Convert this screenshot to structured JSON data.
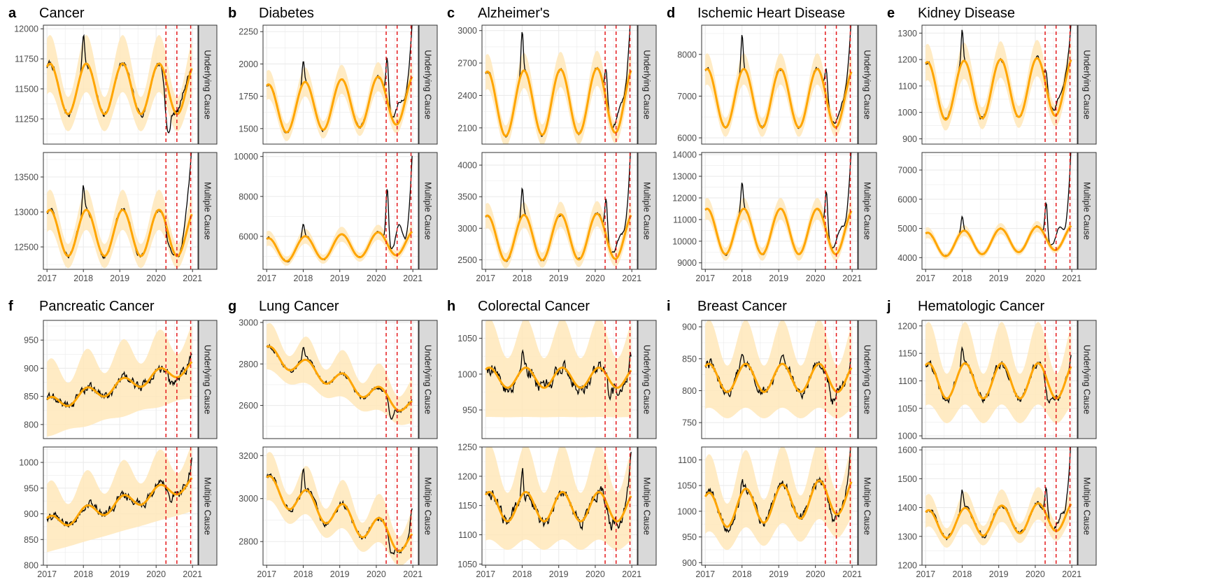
{
  "figure": {
    "strip_labels": [
      "Underlying Cause",
      "Multiple Cause"
    ],
    "x_tick_labels": [
      "2017",
      "2018",
      "2019",
      "2020",
      "2021"
    ],
    "x_ticks": [
      2017,
      2018,
      2019,
      2020,
      2021
    ],
    "xlim": [
      2016.9,
      2021.15
    ],
    "vlines": [
      2020.27,
      2020.57,
      2020.95
    ],
    "colors": {
      "observed": "#000000",
      "expected": "#FFA500",
      "band": "#FFE7BA",
      "vline": "#E41A1C",
      "strip_fill": "#D9D9D9",
      "grid": "#EBEBEB",
      "border": "#333333"
    }
  },
  "chart_data": [
    {
      "letter": "a",
      "title": "Cancer",
      "type": "line",
      "facets": [
        {
          "strip": "Underlying Cause",
          "ylim": [
            11040,
            12030
          ],
          "yticks": [
            11250,
            11500,
            11750,
            12000
          ],
          "expected": {
            "base": 11500,
            "trend": 0,
            "amp": 210,
            "phase": 0.08,
            "band": 190
          },
          "observed": {
            "winter_spike": [
              2018.0,
              270
            ],
            "covid": [
              [
                2020.32,
                -380,
                0.07
              ],
              [
                2020.75,
                80,
                0.1
              ]
            ],
            "end_rise": 0,
            "noise": 45
          }
        },
        {
          "strip": "Multiple Cause",
          "ylim": [
            12180,
            13850
          ],
          "yticks": [
            12500,
            13000,
            13500
          ],
          "expected": {
            "base": 12700,
            "trend": 0,
            "amp": 330,
            "phase": 0.08,
            "band": 230
          },
          "observed": {
            "winter_spike": [
              2018.0,
              380
            ],
            "covid": [
              [
                2020.35,
                -150,
                0.07
              ],
              [
                2020.85,
                300,
                0.08
              ]
            ],
            "end_rise": 900,
            "noise": 55
          }
        }
      ]
    },
    {
      "letter": "b",
      "title": "Diabetes",
      "type": "line",
      "facets": [
        {
          "strip": "Underlying Cause",
          "ylim": [
            1380,
            2300
          ],
          "yticks": [
            1500,
            1750,
            2000,
            2250
          ],
          "expected": {
            "base": 1650,
            "trend": 20,
            "amp": 190,
            "phase": 0.05,
            "band": 90
          },
          "observed": {
            "winter_spike": [
              2018.0,
              180
            ],
            "covid": [
              [
                2020.3,
                330,
                0.035
              ],
              [
                2020.62,
                150,
                0.09
              ]
            ],
            "end_rise": 420,
            "noise": 25
          }
        },
        {
          "strip": "Multiple Cause",
          "ylim": [
            4350,
            10200
          ],
          "yticks": [
            6000,
            8000,
            10000
          ],
          "expected": {
            "base": 5300,
            "trend": 100,
            "amp": 600,
            "phase": 0.05,
            "band": 300
          },
          "observed": {
            "winter_spike": [
              2018.0,
              600
            ],
            "covid": [
              [
                2020.3,
                2800,
                0.035
              ],
              [
                2020.62,
                1500,
                0.09
              ]
            ],
            "end_rise": 3800,
            "noise": 90
          }
        }
      ]
    },
    {
      "letter": "c",
      "title": "Alzheimer's",
      "type": "line",
      "facets": [
        {
          "strip": "Underlying Cause",
          "ylim": [
            1950,
            3050
          ],
          "yticks": [
            2100,
            2400,
            2700,
            3000
          ],
          "expected": {
            "base": 2320,
            "trend": 10,
            "amp": 300,
            "phase": 0.05,
            "band": 130
          },
          "observed": {
            "winter_spike": [
              2018.0,
              380
            ],
            "covid": [
              [
                2020.3,
                280,
                0.035
              ],
              [
                2020.65,
                150,
                0.1
              ]
            ],
            "end_rise": 600,
            "noise": 30
          }
        },
        {
          "strip": "Multiple Cause",
          "ylim": [
            2350,
            4200
          ],
          "yticks": [
            2500,
            3000,
            3500,
            4000
          ],
          "expected": {
            "base": 2840,
            "trend": 10,
            "amp": 360,
            "phase": 0.05,
            "band": 160
          },
          "observed": {
            "winter_spike": [
              2018.0,
              450
            ],
            "covid": [
              [
                2020.3,
                600,
                0.035
              ],
              [
                2020.65,
                250,
                0.1
              ]
            ],
            "end_rise": 1200,
            "noise": 40
          }
        }
      ]
    },
    {
      "letter": "d",
      "title": "Ischemic Heart Disease",
      "type": "line",
      "facets": [
        {
          "strip": "Underlying Cause",
          "ylim": [
            5850,
            8700
          ],
          "yticks": [
            6000,
            7000,
            8000
          ],
          "expected": {
            "base": 6950,
            "trend": 0,
            "amp": 700,
            "phase": 0.05,
            "band": 300
          },
          "observed": {
            "winter_spike": [
              2018.0,
              850
            ],
            "covid": [
              [
                2020.3,
                700,
                0.035
              ],
              [
                2020.65,
                250,
                0.1
              ]
            ],
            "end_rise": 1300,
            "noise": 70
          }
        },
        {
          "strip": "Multiple Cause",
          "ylim": [
            8700,
            14100
          ],
          "yticks": [
            9000,
            10000,
            11000,
            12000,
            13000,
            14000
          ],
          "expected": {
            "base": 10450,
            "trend": 0,
            "amp": 1050,
            "phase": 0.05,
            "band": 400
          },
          "observed": {
            "winter_spike": [
              2018.0,
              1250
            ],
            "covid": [
              [
                2020.3,
                1900,
                0.035
              ],
              [
                2020.65,
                900,
                0.1
              ]
            ],
            "end_rise": 3000,
            "noise": 100
          }
        }
      ]
    },
    {
      "letter": "e",
      "title": "Kidney Disease",
      "type": "line",
      "facets": [
        {
          "strip": "Underlying Cause",
          "ylim": [
            880,
            1330
          ],
          "yticks": [
            900,
            1000,
            1100,
            1200,
            1300
          ],
          "expected": {
            "base": 1080,
            "trend": 5,
            "amp": 110,
            "phase": 0.05,
            "band": 55
          },
          "observed": {
            "winter_spike": [
              2018.0,
              120
            ],
            "covid": [
              [
                2020.3,
                60,
                0.035
              ],
              [
                2020.65,
                50,
                0.1
              ]
            ],
            "end_rise": 130,
            "noise": 14
          }
        },
        {
          "strip": "Multiple Cause",
          "ylim": [
            3600,
            7600
          ],
          "yticks": [
            4000,
            5000,
            6000,
            7000
          ],
          "expected": {
            "base": 4430,
            "trend": 70,
            "amp": 420,
            "phase": 0.05,
            "band": 150
          },
          "observed": {
            "winter_spike": [
              2018.0,
              500
            ],
            "covid": [
              [
                2020.3,
                1200,
                0.035
              ],
              [
                2020.65,
                700,
                0.1
              ]
            ],
            "end_rise": 2700,
            "noise": 50
          }
        }
      ]
    },
    {
      "letter": "f",
      "title": "Pancreatic Cancer",
      "type": "line",
      "facets": [
        {
          "strip": "Underlying Cause",
          "ylim": [
            775,
            985
          ],
          "yticks": [
            800,
            850,
            900,
            950
          ],
          "expected": {
            "base": 835,
            "trend": 17,
            "amp": 12,
            "phase": 0.1,
            "band": 55
          },
          "observed": {
            "winter_spike": [
              2018.0,
              0
            ],
            "covid": [
              [
                2020.4,
                -20,
                0.06
              ]
            ],
            "end_rise": 10,
            "noise": 15
          }
        },
        {
          "strip": "Multiple Cause",
          "ylim": [
            800,
            1030
          ],
          "yticks": [
            800,
            850,
            900,
            950,
            1000
          ],
          "expected": {
            "base": 880,
            "trend": 20,
            "amp": 14,
            "phase": 0.1,
            "band": 55
          },
          "observed": {
            "winter_spike": [
              2018.0,
              0
            ],
            "covid": [
              [
                2020.4,
                -15,
                0.06
              ]
            ],
            "end_rise": 35,
            "noise": 16
          }
        }
      ]
    },
    {
      "letter": "g",
      "title": "Lung Cancer",
      "type": "line",
      "facets": [
        {
          "strip": "Underlying Cause",
          "ylim": [
            2440,
            3010
          ],
          "yticks": [
            2600,
            2800,
            3000
          ],
          "expected": {
            "base": 2850,
            "trend": -65,
            "amp": 40,
            "phase": 0.1,
            "band": 90
          },
          "observed": {
            "winter_spike": [
              2018.0,
              60
            ],
            "covid": [
              [
                2020.4,
                -70,
                0.06
              ]
            ],
            "end_rise": 0,
            "noise": 20
          }
        },
        {
          "strip": "Multiple Cause",
          "ylim": [
            2690,
            3240
          ],
          "yticks": [
            2800,
            3000,
            3200
          ],
          "expected": {
            "base": 3050,
            "trend": -65,
            "amp": 60,
            "phase": 0.1,
            "band": 90
          },
          "observed": {
            "winter_spike": [
              2018.0,
              100
            ],
            "covid": [
              [
                2020.4,
                -60,
                0.06
              ]
            ],
            "end_rise": 120,
            "noise": 25
          }
        }
      ]
    },
    {
      "letter": "h",
      "title": "Colorectal Cancer",
      "type": "line",
      "facets": [
        {
          "strip": "Underlying Cause",
          "ylim": [
            910,
            1075
          ],
          "yticks": [
            950,
            1000,
            1050
          ],
          "expected": {
            "base": 995,
            "trend": 0,
            "amp": 14,
            "phase": 0.1,
            "band": 55
          },
          "observed": {
            "winter_spike": [
              2018.0,
              30
            ],
            "covid": [
              [
                2020.4,
                -20,
                0.06
              ]
            ],
            "end_rise": 20,
            "noise": 18
          }
        },
        {
          "strip": "Multiple Cause",
          "ylim": [
            1048,
            1250
          ],
          "yticks": [
            1050,
            1100,
            1150,
            1200,
            1250
          ],
          "expected": {
            "base": 1148,
            "trend": 0,
            "amp": 25,
            "phase": 0.1,
            "band": 65
          },
          "observed": {
            "winter_spike": [
              2018.0,
              50
            ],
            "covid": [
              [
                2020.4,
                -20,
                0.06
              ]
            ],
            "end_rise": 70,
            "noise": 20
          }
        }
      ]
    },
    {
      "letter": "i",
      "title": "Breast Cancer",
      "type": "line",
      "facets": [
        {
          "strip": "Underlying Cause",
          "ylim": [
            725,
            910
          ],
          "yticks": [
            750,
            800,
            850,
            900
          ],
          "expected": {
            "base": 820,
            "trend": 0,
            "amp": 22,
            "phase": 0.1,
            "band": 55
          },
          "observed": {
            "winter_spike": [
              2018.0,
              20
            ],
            "covid": [
              [
                2020.45,
                -20,
                0.06
              ]
            ],
            "end_rise": 10,
            "noise": 16
          }
        },
        {
          "strip": "Multiple Cause",
          "ylim": [
            895,
            1125
          ],
          "yticks": [
            900,
            950,
            1000,
            1050,
            1100
          ],
          "expected": {
            "base": 1000,
            "trend": 8,
            "amp": 35,
            "phase": 0.1,
            "band": 60
          },
          "observed": {
            "winter_spike": [
              2018.0,
              30
            ],
            "covid": [
              [
                2020.45,
                -20,
                0.06
              ]
            ],
            "end_rise": 90,
            "noise": 17
          }
        }
      ]
    },
    {
      "letter": "j",
      "title": "Hematologic Cancer",
      "type": "line",
      "facets": [
        {
          "strip": "Underlying Cause",
          "ylim": [
            995,
            1210
          ],
          "yticks": [
            1000,
            1050,
            1100,
            1150,
            1200
          ],
          "expected": {
            "base": 1100,
            "trend": 0,
            "amp": 32,
            "phase": 0.08,
            "band": 60
          },
          "observed": {
            "winter_spike": [
              2018.0,
              35
            ],
            "covid": [
              [
                2020.35,
                -35,
                0.06
              ]
            ],
            "end_rise": 15,
            "noise": 13
          }
        },
        {
          "strip": "Multiple Cause",
          "ylim": [
            1200,
            1610
          ],
          "yticks": [
            1200,
            1300,
            1400,
            1500,
            1600
          ],
          "expected": {
            "base": 1340,
            "trend": 8,
            "amp": 50,
            "phase": 0.08,
            "band": 45
          },
          "observed": {
            "winter_spike": [
              2018.0,
              60
            ],
            "covid": [
              [
                2020.3,
                100,
                0.035
              ],
              [
                2020.7,
                40,
                0.1
              ]
            ],
            "end_rise": 230,
            "noise": 15
          }
        }
      ]
    }
  ]
}
